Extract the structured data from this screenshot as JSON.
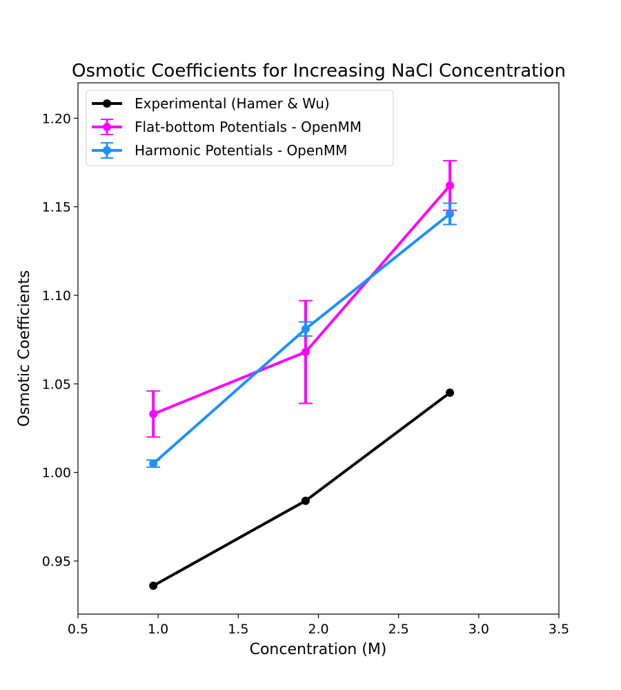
{
  "chart_data": {
    "type": "line",
    "title": "Osmotic Coefficients for Increasing NaCl Concentration",
    "xlabel": "Concentration (M)",
    "ylabel": "Osmotic Coefficients",
    "xlim": [
      0.5,
      3.5
    ],
    "ylim": [
      0.92,
      1.22
    ],
    "xticks": [
      0.5,
      1.0,
      1.5,
      2.0,
      2.5,
      3.0,
      3.5
    ],
    "xtick_labels": [
      "0.5",
      "1.0",
      "1.5",
      "2.0",
      "2.5",
      "3.0",
      "3.5"
    ],
    "yticks": [
      0.95,
      1.0,
      1.05,
      1.1,
      1.15,
      1.2
    ],
    "ytick_labels": [
      "0.95",
      "1.00",
      "1.05",
      "1.10",
      "1.15",
      "1.20"
    ],
    "grid": false,
    "legend_position": "top-left",
    "series": [
      {
        "name": "Experimental (Hamer & Wu)",
        "color": "#000000",
        "x": [
          0.97,
          1.92,
          2.82
        ],
        "y": [
          0.936,
          0.984,
          1.045
        ],
        "yerr": null
      },
      {
        "name": "Flat-bottom Potentials - OpenMM",
        "color": "#ff00ff",
        "x": [
          0.97,
          1.92,
          2.82
        ],
        "y": [
          1.033,
          1.068,
          1.162
        ],
        "yerr": [
          0.013,
          0.029,
          0.014
        ]
      },
      {
        "name": "Harmonic Potentials - OpenMM",
        "color": "#1e90ff",
        "x": [
          0.97,
          1.92,
          2.82
        ],
        "y": [
          1.005,
          1.081,
          1.146
        ],
        "yerr": [
          0.002,
          0.004,
          0.006
        ]
      }
    ]
  }
}
